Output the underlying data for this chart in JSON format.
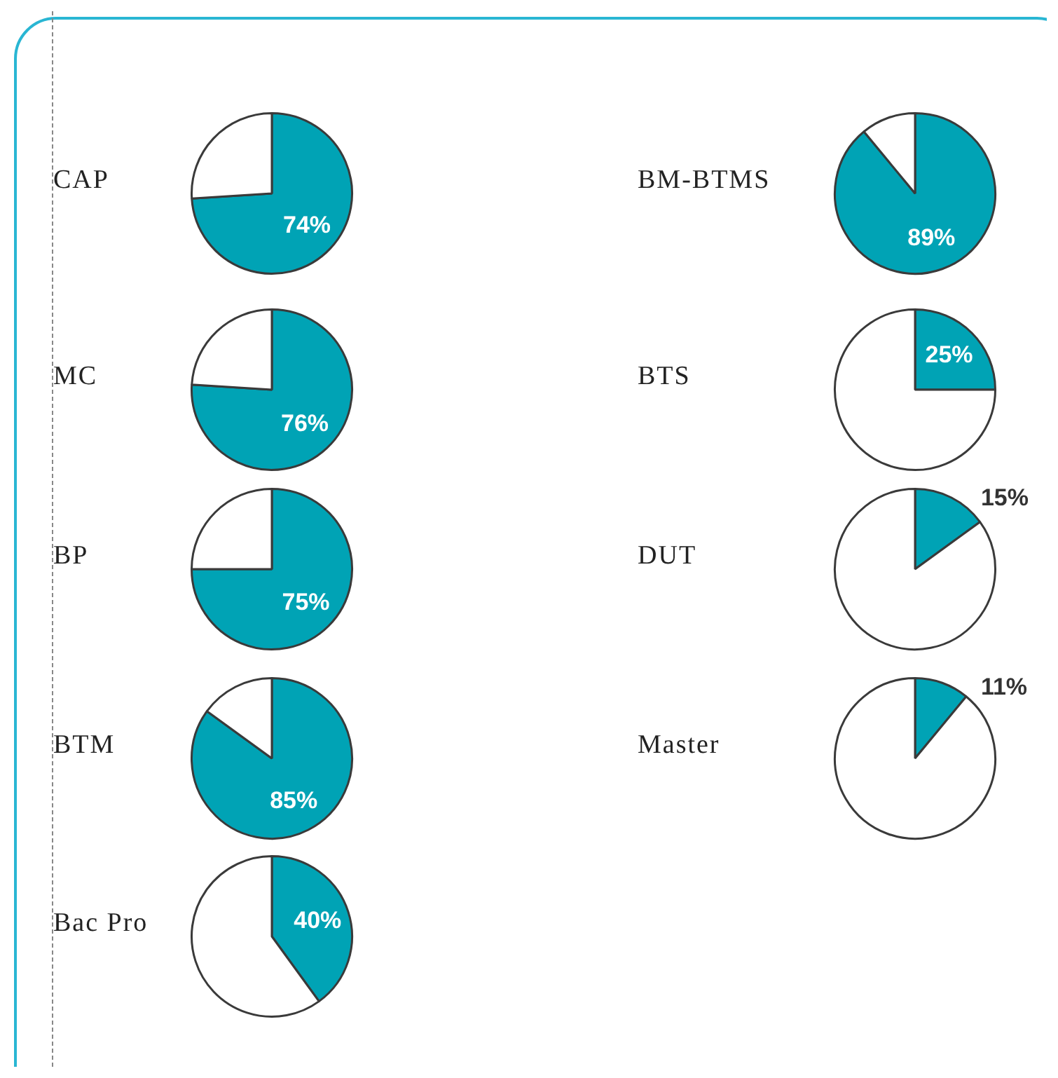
{
  "chart_data": [
    {
      "type": "pie",
      "title": "CAP",
      "categories": [
        null,
        null
      ],
      "values": [
        74,
        26
      ],
      "colors": [
        "#00a3b5",
        "#ffffff"
      ],
      "value_labels": [
        "74%",
        null
      ]
    },
    {
      "type": "pie",
      "title": "MC",
      "categories": [
        null,
        null
      ],
      "values": [
        76,
        24
      ],
      "colors": [
        "#00a3b5",
        "#ffffff"
      ],
      "value_labels": [
        "76%",
        null
      ]
    },
    {
      "type": "pie",
      "title": "BP",
      "categories": [
        null,
        null
      ],
      "values": [
        75,
        25
      ],
      "colors": [
        "#00a3b5",
        "#ffffff"
      ],
      "value_labels": [
        "75%",
        null
      ]
    },
    {
      "type": "pie",
      "title": "BTM",
      "categories": [
        null,
        null
      ],
      "values": [
        85,
        15
      ],
      "colors": [
        "#00a3b5",
        "#ffffff"
      ],
      "value_labels": [
        "85%",
        null
      ]
    },
    {
      "type": "pie",
      "title": "Bac Pro",
      "categories": [
        null,
        null
      ],
      "values": [
        40,
        60
      ],
      "colors": [
        "#00a3b5",
        "#ffffff"
      ],
      "value_labels": [
        "40%",
        null
      ]
    },
    {
      "type": "pie",
      "title": "BM-BTMS",
      "categories": [
        null,
        null
      ],
      "values": [
        89,
        11
      ],
      "colors": [
        "#00a3b5",
        "#ffffff"
      ],
      "value_labels": [
        "89%",
        null
      ]
    },
    {
      "type": "pie",
      "title": "BTS",
      "categories": [
        null,
        null
      ],
      "values": [
        25,
        75
      ],
      "colors": [
        "#00a3b5",
        "#ffffff"
      ],
      "value_labels": [
        "25%",
        null
      ]
    },
    {
      "type": "pie",
      "title": "DUT",
      "categories": [
        null,
        null
      ],
      "values": [
        15,
        85
      ],
      "colors": [
        "#00a3b5",
        "#ffffff"
      ],
      "value_labels": [
        "15%",
        null
      ]
    },
    {
      "type": "pie",
      "title": "Master",
      "categories": [
        null,
        null
      ],
      "values": [
        11,
        89
      ],
      "colors": [
        "#00a3b5",
        "#ffffff"
      ],
      "value_labels": [
        "11%",
        null
      ]
    }
  ]
}
